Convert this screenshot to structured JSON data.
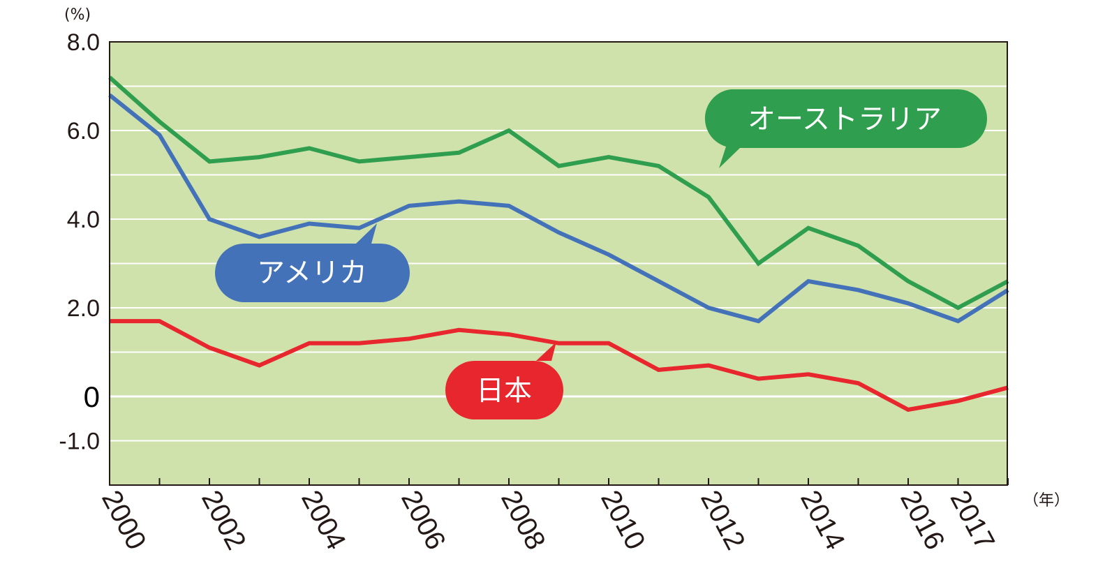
{
  "chart_data": {
    "type": "line",
    "y_unit_label": "(%)",
    "x_unit_label": "（年）",
    "ylim": [
      -2.0,
      8.0
    ],
    "y_ticks": [
      {
        "value": 8.0,
        "label": "8.0"
      },
      {
        "value": 6.0,
        "label": "6.0"
      },
      {
        "value": 4.0,
        "label": "4.0"
      },
      {
        "value": 2.0,
        "label": "2.0"
      },
      {
        "value": 0,
        "label": "0"
      },
      {
        "value": -1.0,
        "label": "-1.0"
      }
    ],
    "gridlines": [
      -1,
      0,
      1,
      2,
      3,
      4,
      5,
      6,
      7
    ],
    "x": [
      2000,
      2001,
      2002,
      2003,
      2004,
      2005,
      2006,
      2007,
      2008,
      2009,
      2010,
      2011,
      2012,
      2013,
      2014,
      2015,
      2016,
      2017,
      2018
    ],
    "x_tick_labels": [
      "2000",
      "2002",
      "2004",
      "2006",
      "2008",
      "2010",
      "2012",
      "2014",
      "2016",
      "2017"
    ],
    "x_tick_years": [
      2000,
      2002,
      2004,
      2006,
      2008,
      2010,
      2012,
      2014,
      2016,
      2017
    ],
    "series": [
      {
        "name": "オーストラリア",
        "color": "#2f9e4f",
        "values": [
          7.2,
          6.2,
          5.3,
          5.4,
          5.6,
          5.3,
          5.4,
          5.5,
          6.0,
          5.2,
          5.4,
          5.2,
          4.5,
          3.0,
          3.8,
          3.4,
          2.6,
          2.0,
          2.6
        ]
      },
      {
        "name": "アメリカ",
        "color": "#4472b9",
        "values": [
          6.8,
          5.9,
          4.0,
          3.6,
          3.9,
          3.8,
          4.3,
          4.4,
          4.3,
          3.7,
          3.2,
          2.6,
          2.0,
          1.7,
          2.6,
          2.4,
          2.1,
          1.7,
          2.4
        ]
      },
      {
        "name": "日本",
        "color": "#e7262d",
        "values": [
          1.7,
          1.7,
          1.1,
          0.7,
          1.2,
          1.2,
          1.3,
          1.5,
          1.4,
          1.2,
          1.2,
          0.6,
          0.7,
          0.4,
          0.5,
          0.3,
          -0.3,
          -0.1,
          0.2
        ]
      }
    ],
    "background_color": "#cfe2ab"
  }
}
